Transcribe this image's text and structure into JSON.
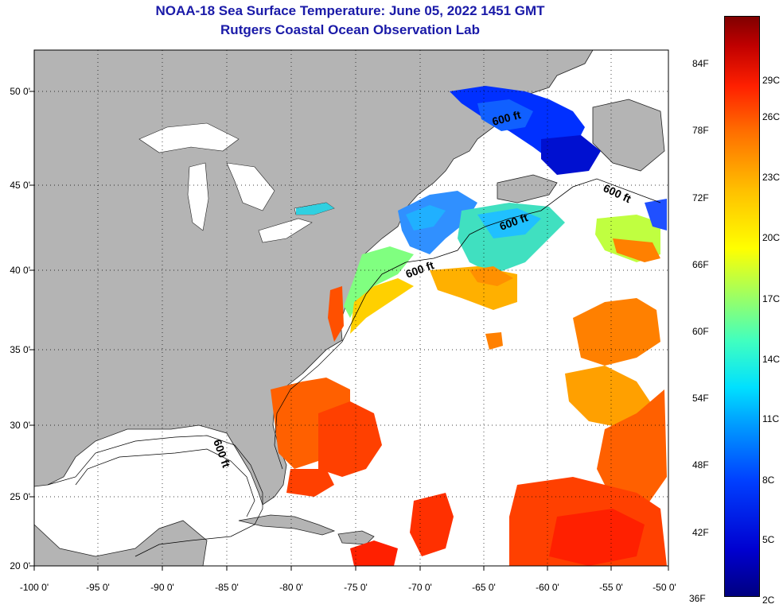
{
  "title": {
    "line1": "NOAA-18 Sea Surface Temperature:  June 05, 2022 1451 GMT",
    "line2": "Rutgers Coastal Ocean Observation Lab"
  },
  "map": {
    "lat_labels": [
      "50 0'",
      "45 0'",
      "40 0'",
      "35 0'",
      "30 0'",
      "25 0'",
      "20 0'"
    ],
    "lon_labels": [
      "-100 0'",
      "-95 0'",
      "-90 0'",
      "-85 0'",
      "-80 0'",
      "-75 0'",
      "-70 0'",
      "-65 0'",
      "-60 0'",
      "-55 0'",
      "-50 0'"
    ],
    "contour_label": "600 ft",
    "colors": {
      "land": "#b4b4b4",
      "water_no_data": "#ffffff",
      "title": "#1a1aa8"
    }
  },
  "colorbar": {
    "fahrenheit": [
      "84F",
      "78F",
      "72F",
      "66F",
      "60F",
      "54F",
      "48F",
      "42F",
      "36F"
    ],
    "celsius": [
      "29C",
      "26C",
      "23C",
      "20C",
      "17C",
      "14C",
      "11C",
      "8C",
      "5C",
      "2C"
    ]
  }
}
